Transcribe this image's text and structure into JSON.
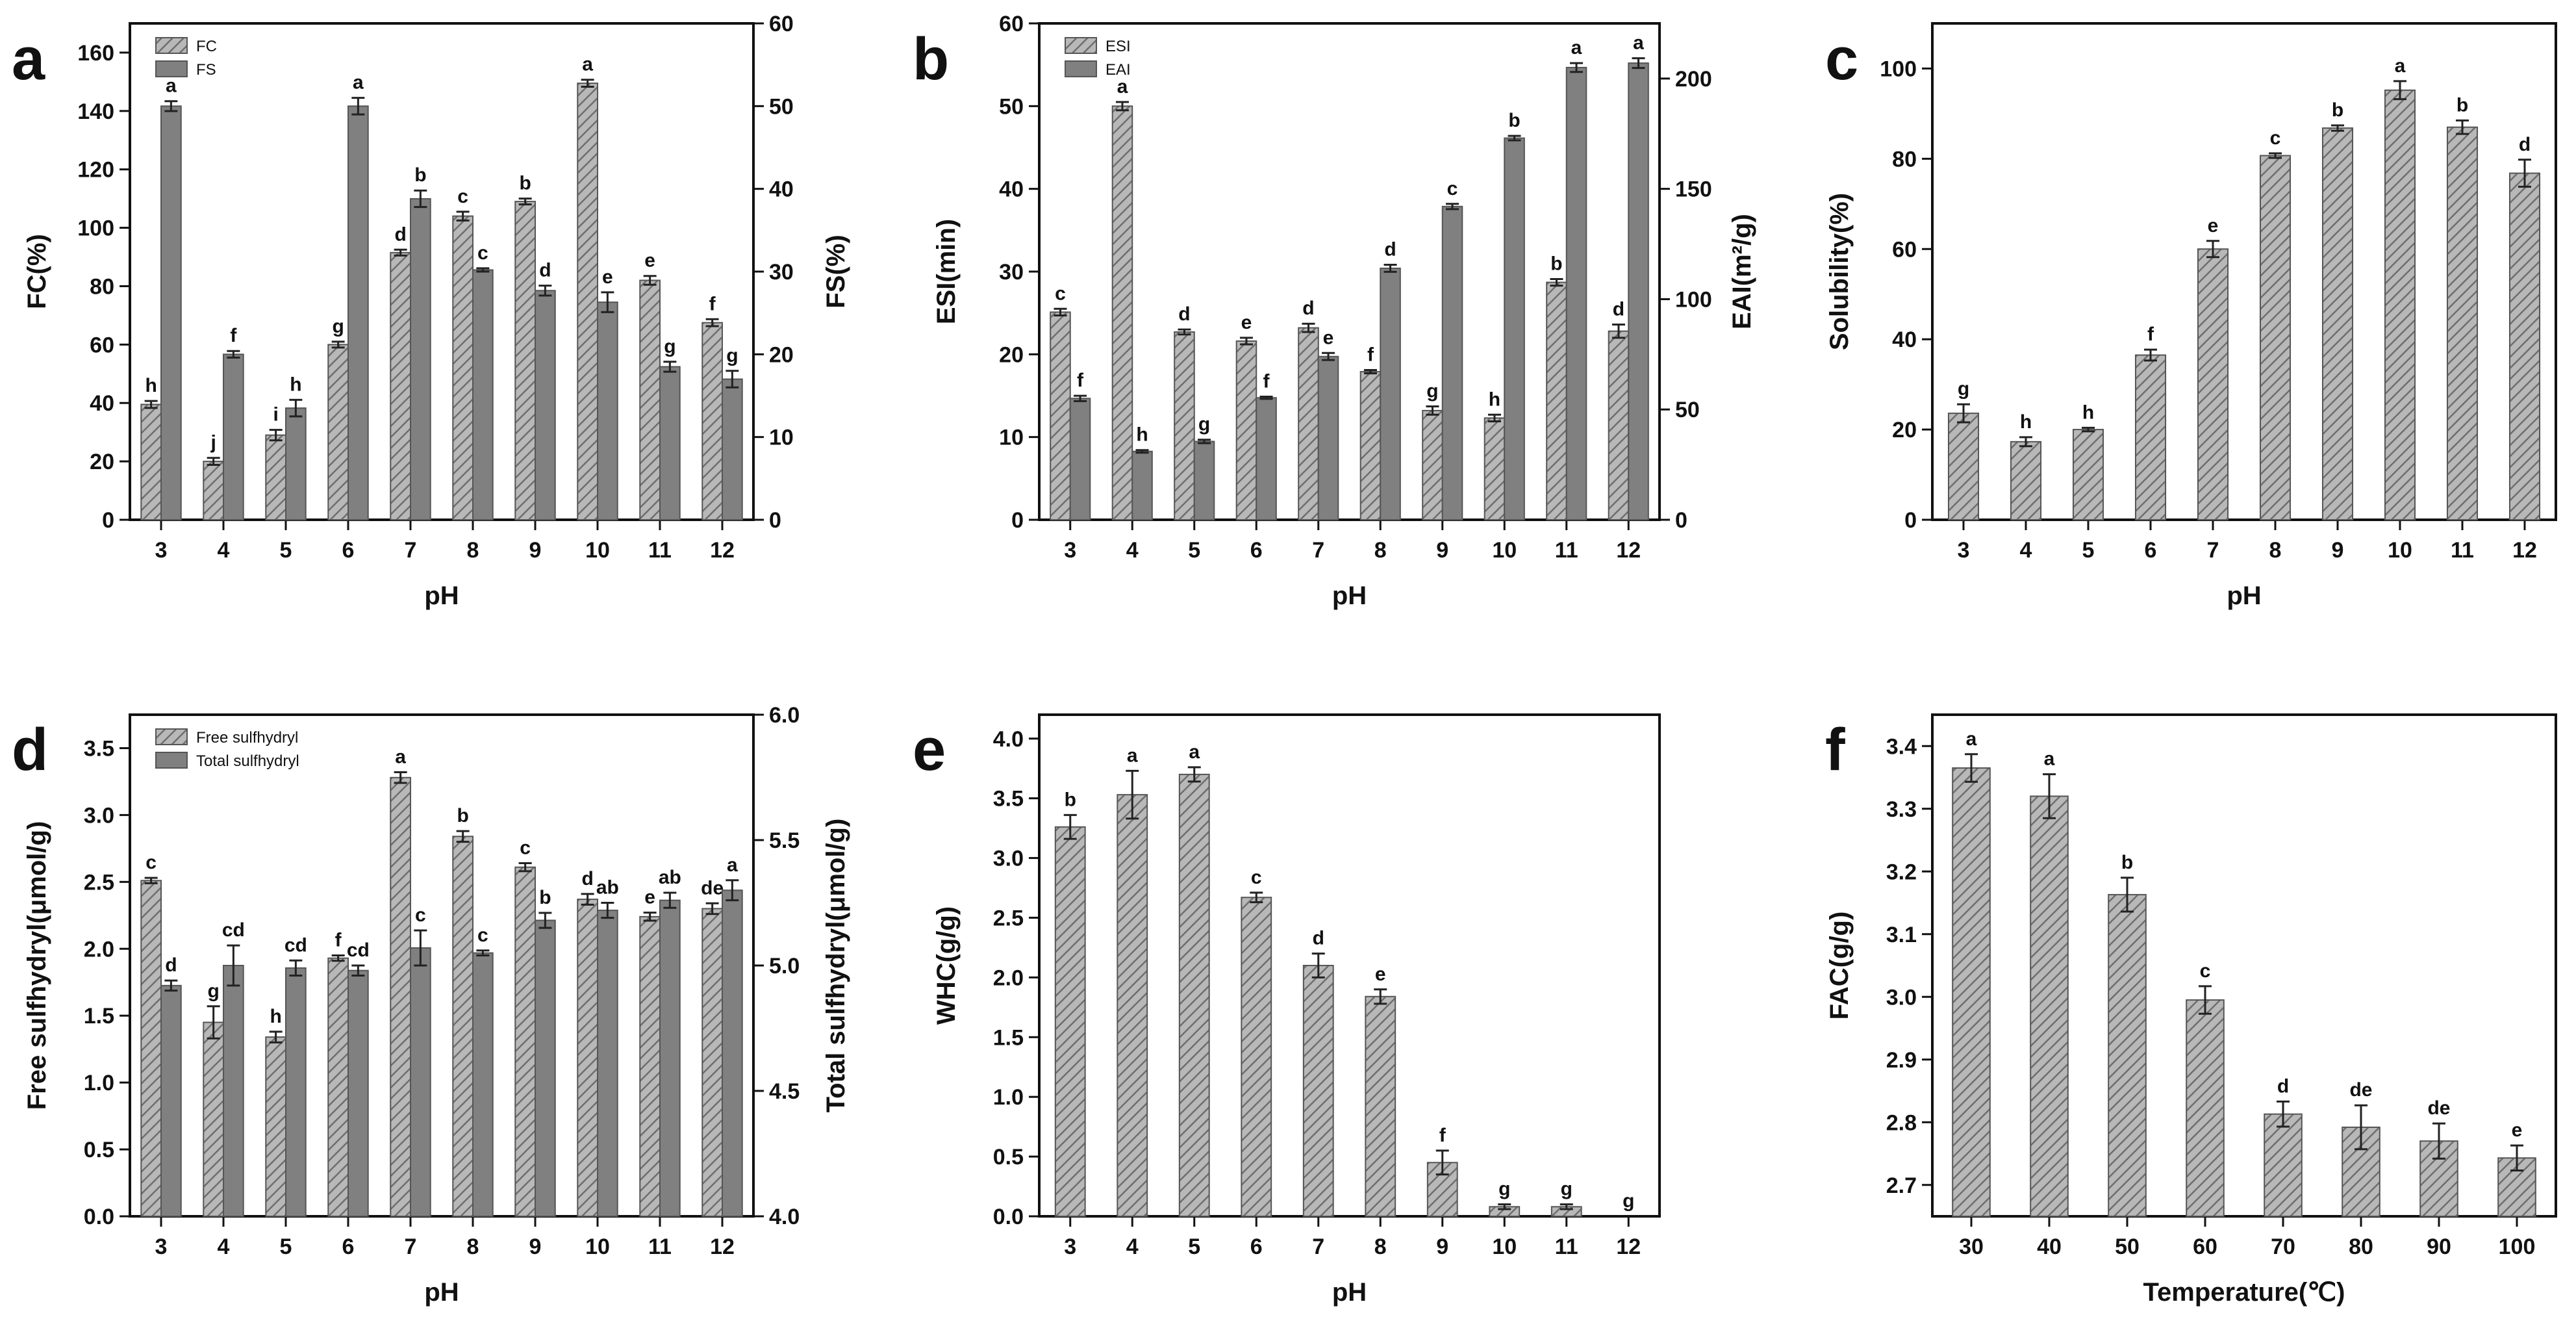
{
  "colors": {
    "hatch_bar": "#b5b5b5",
    "hatch_line": "#6e6e6e",
    "solid_bar": "#808080",
    "axis": "#111111"
  },
  "panels": [
    {
      "letter": "a",
      "type": "bar",
      "xlabel": "pH",
      "ylabel": "FC(%)",
      "y2label": "FS(%)",
      "categories": [
        "3",
        "4",
        "5",
        "6",
        "7",
        "8",
        "9",
        "10",
        "11",
        "12"
      ],
      "ylim": [
        0,
        170
      ],
      "yticks": [
        0,
        20,
        40,
        60,
        80,
        100,
        120,
        140,
        160
      ],
      "y2lim": [
        0,
        60
      ],
      "y2ticks": [
        0,
        10,
        20,
        30,
        40,
        50,
        60
      ],
      "legend": "top-left",
      "series": [
        {
          "name": "FC",
          "style": "hatch",
          "axis": "left",
          "values": [
            39.5,
            20,
            29,
            60,
            91.5,
            104,
            109,
            149.5,
            82,
            67.5
          ],
          "errors": [
            1.2,
            1.2,
            1.8,
            1,
            1,
            1.5,
            1,
            1.2,
            1.5,
            1.2
          ],
          "letters": [
            "h",
            "j",
            "i",
            "g",
            "d",
            "c",
            "b",
            "a",
            "e",
            "f"
          ]
        },
        {
          "name": "FS",
          "style": "solid",
          "axis": "right",
          "values": [
            50,
            20,
            13.5,
            50,
            38.8,
            30.2,
            27.7,
            26.3,
            18.5,
            17
          ],
          "errors": [
            0.6,
            0.4,
            1,
            1,
            1,
            0.2,
            0.6,
            1.2,
            0.6,
            1
          ],
          "letters": [
            "a",
            "f",
            "h",
            "a",
            "b",
            "c",
            "d",
            "e",
            "g",
            "g"
          ]
        }
      ]
    },
    {
      "letter": "b",
      "type": "bar",
      "xlabel": "pH",
      "ylabel": "ESI(min)",
      "y2label": "EAI(m²/g)",
      "categories": [
        "3",
        "4",
        "5",
        "6",
        "7",
        "8",
        "9",
        "10",
        "11",
        "12"
      ],
      "ylim": [
        0,
        60
      ],
      "yticks": [
        0,
        10,
        20,
        30,
        40,
        50,
        60
      ],
      "y2lim": [
        0,
        225
      ],
      "y2ticks": [
        0,
        50,
        100,
        150,
        200
      ],
      "legend": "top-left",
      "series": [
        {
          "name": "ESI",
          "style": "hatch",
          "axis": "left",
          "values": [
            25.1,
            50,
            22.7,
            21.6,
            23.2,
            17.9,
            13.2,
            12.3,
            28.7,
            22.8
          ],
          "errors": [
            0.4,
            0.5,
            0.3,
            0.4,
            0.5,
            0.2,
            0.5,
            0.4,
            0.4,
            0.8
          ],
          "letters": [
            "c",
            "a",
            "d",
            "e",
            "d",
            "f",
            "g",
            "h",
            "b",
            "d"
          ]
        },
        {
          "name": "EAI",
          "style": "solid",
          "axis": "right",
          "values": [
            55,
            31,
            35.5,
            55.3,
            74,
            114,
            142,
            173,
            205,
            207
          ],
          "errors": [
            1.2,
            0.6,
            0.8,
            0.5,
            1.6,
            1.6,
            1.2,
            1,
            2,
            2.2
          ],
          "letters": [
            "f",
            "h",
            "g",
            "f",
            "e",
            "d",
            "c",
            "b",
            "a",
            "a"
          ]
        }
      ]
    },
    {
      "letter": "c",
      "type": "bar",
      "xlabel": "pH",
      "ylabel": "Solubility(%)",
      "categories": [
        "3",
        "4",
        "5",
        "6",
        "7",
        "8",
        "9",
        "10",
        "11",
        "12"
      ],
      "ylim": [
        0,
        110
      ],
      "yticks": [
        0,
        20,
        40,
        60,
        80,
        100
      ],
      "series": [
        {
          "style": "hatch",
          "axis": "left",
          "values": [
            23.6,
            17.3,
            20,
            36.5,
            60,
            80.7,
            86.8,
            95.2,
            87,
            76.8
          ],
          "errors": [
            2,
            1,
            0.4,
            1.2,
            1.8,
            0.5,
            0.6,
            2,
            1.5,
            3
          ],
          "letters": [
            "g",
            "h",
            "h",
            "f",
            "e",
            "c",
            "b",
            "a",
            "b",
            "d"
          ]
        }
      ]
    },
    {
      "letter": "d",
      "type": "bar",
      "xlabel": "pH",
      "ylabel": "Free sulfhydryl(μmol/g)",
      "y2label": "Total sulfhydryl(μmol/g)",
      "categories": [
        "3",
        "4",
        "5",
        "6",
        "7",
        "8",
        "9",
        "10",
        "11",
        "12"
      ],
      "ylim": [
        0,
        3.75
      ],
      "yticks": [
        0,
        0.5,
        1.0,
        1.5,
        2.0,
        2.5,
        3.0,
        3.5
      ],
      "y2lim": [
        4.0,
        6.0
      ],
      "y2ticks": [
        4.0,
        4.5,
        5.0,
        5.5,
        6.0
      ],
      "legend": "top-left",
      "series": [
        {
          "name": "Free sulfhydryl",
          "style": "hatch",
          "axis": "left",
          "values": [
            2.51,
            1.45,
            1.34,
            1.93,
            3.28,
            2.84,
            2.61,
            2.37,
            2.24,
            2.3
          ],
          "errors": [
            0.02,
            0.12,
            0.04,
            0.02,
            0.04,
            0.04,
            0.03,
            0.04,
            0.03,
            0.04
          ],
          "letters": [
            "c",
            "g",
            "h",
            "f",
            "a",
            "b",
            "c",
            "d",
            "e",
            "de"
          ]
        },
        {
          "name": "Total sulfhydryl",
          "style": "solid",
          "axis": "right",
          "values": [
            4.92,
            5.0,
            4.99,
            4.98,
            5.07,
            5.05,
            5.18,
            5.22,
            5.26,
            5.3
          ],
          "errors": [
            0.02,
            0.08,
            0.03,
            0.02,
            0.07,
            0.01,
            0.03,
            0.03,
            0.03,
            0.04
          ],
          "letters": [
            "d",
            "cd",
            "cd",
            "cd",
            "c",
            "c",
            "b",
            "ab",
            "ab",
            "a"
          ]
        }
      ]
    },
    {
      "letter": "e",
      "type": "bar",
      "xlabel": "pH",
      "ylabel": "WHC(g/g)",
      "categories": [
        "3",
        "4",
        "5",
        "6",
        "7",
        "8",
        "9",
        "10",
        "11",
        "12"
      ],
      "ylim": [
        0,
        4.2
      ],
      "yticks": [
        0,
        0.5,
        1.0,
        1.5,
        2.0,
        2.5,
        3.0,
        3.5,
        4.0
      ],
      "series": [
        {
          "style": "hatch",
          "axis": "left",
          "values": [
            3.26,
            3.53,
            3.7,
            2.67,
            2.1,
            1.84,
            0.45,
            0.08,
            0.08,
            0
          ],
          "errors": [
            0.1,
            0.2,
            0.06,
            0.04,
            0.1,
            0.06,
            0.1,
            0.02,
            0.02,
            0
          ],
          "letters": [
            "b",
            "a",
            "a",
            "c",
            "d",
            "e",
            "f",
            "g",
            "g",
            "g"
          ]
        }
      ]
    },
    {
      "letter": "f",
      "type": "bar",
      "xlabel": "Temperature(℃)",
      "ylabel": "FAC(g/g)",
      "categories": [
        "30",
        "40",
        "50",
        "60",
        "70",
        "80",
        "90",
        "100"
      ],
      "ylim": [
        2.65,
        3.45
      ],
      "yticks": [
        2.7,
        2.8,
        2.9,
        3.0,
        3.1,
        3.2,
        3.3,
        3.4
      ],
      "series": [
        {
          "style": "hatch",
          "axis": "left",
          "values": [
            3.365,
            3.32,
            3.163,
            2.995,
            2.813,
            2.792,
            2.77,
            2.743
          ],
          "errors": [
            0.022,
            0.035,
            0.027,
            0.022,
            0.02,
            0.035,
            0.028,
            0.02
          ],
          "letters": [
            "a",
            "a",
            "b",
            "c",
            "d",
            "de",
            "de",
            "e"
          ]
        }
      ]
    }
  ],
  "chart_data": [
    {
      "type": "bar",
      "panel": "a",
      "categories": [
        "3",
        "4",
        "5",
        "6",
        "7",
        "8",
        "9",
        "10",
        "11",
        "12"
      ],
      "xlabel": "pH",
      "ylabel": "FC(%)",
      "y2label": "FS(%)",
      "ylim": [
        0,
        170
      ],
      "y2lim": [
        0,
        60
      ],
      "series": [
        {
          "name": "FC",
          "values": [
            39.5,
            20,
            29,
            60,
            91.5,
            104,
            109,
            149.5,
            82,
            67.5
          ]
        },
        {
          "name": "FS",
          "values": [
            50,
            20,
            13.5,
            50,
            38.8,
            30.2,
            27.7,
            26.3,
            18.5,
            17
          ]
        }
      ]
    },
    {
      "type": "bar",
      "panel": "b",
      "categories": [
        "3",
        "4",
        "5",
        "6",
        "7",
        "8",
        "9",
        "10",
        "11",
        "12"
      ],
      "xlabel": "pH",
      "ylabel": "ESI(min)",
      "y2label": "EAI(m²/g)",
      "ylim": [
        0,
        60
      ],
      "y2lim": [
        0,
        225
      ],
      "series": [
        {
          "name": "ESI",
          "values": [
            25.1,
            50,
            22.7,
            21.6,
            23.2,
            17.9,
            13.2,
            12.3,
            28.7,
            22.8
          ]
        },
        {
          "name": "EAI",
          "values": [
            55,
            31,
            35.5,
            55.3,
            74,
            114,
            142,
            173,
            205,
            207
          ]
        }
      ]
    },
    {
      "type": "bar",
      "panel": "c",
      "categories": [
        "3",
        "4",
        "5",
        "6",
        "7",
        "8",
        "9",
        "10",
        "11",
        "12"
      ],
      "xlabel": "pH",
      "ylabel": "Solubility(%)",
      "ylim": [
        0,
        110
      ],
      "series": [
        {
          "values": [
            23.6,
            17.3,
            20,
            36.5,
            60,
            80.7,
            86.8,
            95.2,
            87,
            76.8
          ]
        }
      ]
    },
    {
      "type": "bar",
      "panel": "d",
      "categories": [
        "3",
        "4",
        "5",
        "6",
        "7",
        "8",
        "9",
        "10",
        "11",
        "12"
      ],
      "xlabel": "pH",
      "ylabel": "Free sulfhydryl(μmol/g)",
      "y2label": "Total sulfhydryl(μmol/g)",
      "ylim": [
        0,
        3.75
      ],
      "y2lim": [
        4.0,
        6.0
      ],
      "series": [
        {
          "name": "Free sulfhydryl",
          "values": [
            2.51,
            1.45,
            1.34,
            1.93,
            3.28,
            2.84,
            2.61,
            2.37,
            2.24,
            2.3
          ]
        },
        {
          "name": "Total sulfhydryl",
          "values": [
            4.92,
            5.0,
            4.99,
            4.98,
            5.07,
            5.05,
            5.18,
            5.22,
            5.26,
            5.3
          ]
        }
      ]
    },
    {
      "type": "bar",
      "panel": "e",
      "categories": [
        "3",
        "4",
        "5",
        "6",
        "7",
        "8",
        "9",
        "10",
        "11",
        "12"
      ],
      "xlabel": "pH",
      "ylabel": "WHC(g/g)",
      "ylim": [
        0,
        4.2
      ],
      "series": [
        {
          "values": [
            3.26,
            3.53,
            3.7,
            2.67,
            2.1,
            1.84,
            0.45,
            0.08,
            0.08,
            0
          ]
        }
      ]
    },
    {
      "type": "bar",
      "panel": "f",
      "categories": [
        "30",
        "40",
        "50",
        "60",
        "70",
        "80",
        "90",
        "100"
      ],
      "xlabel": "Temperature(℃)",
      "ylabel": "FAC(g/g)",
      "ylim": [
        2.65,
        3.45
      ],
      "series": [
        {
          "values": [
            3.365,
            3.32,
            3.163,
            2.995,
            2.813,
            2.792,
            2.77,
            2.743
          ]
        }
      ]
    }
  ]
}
